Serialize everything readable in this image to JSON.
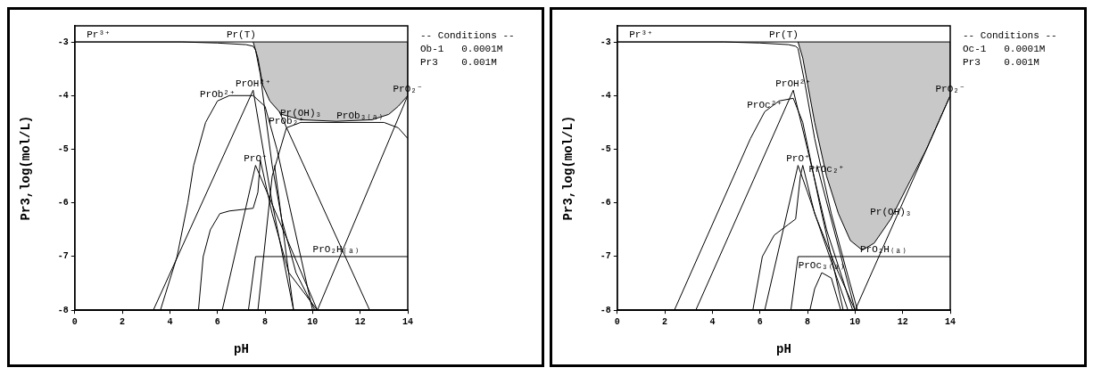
{
  "chart_data": [
    {
      "type": "line",
      "xlabel": "pH",
      "ylabel": "Pr3,log(mol/L)",
      "xlim": [
        0,
        14
      ],
      "ylim": [
        -8,
        -2.7
      ],
      "xticks": [
        0,
        2,
        4,
        6,
        8,
        10,
        12,
        14
      ],
      "yticks": [
        -8,
        -7,
        -6,
        -5,
        -4,
        -3
      ],
      "marker": "none",
      "legend": false,
      "series": [
        {
          "color": "#000000",
          "x": [
            0,
            14
          ],
          "values": [
            -3,
            -3
          ]
        },
        {
          "type": "area",
          "color": "#c8c8c8",
          "x": [
            7.5,
            7.7,
            7.9,
            8.2,
            8.7,
            9.5,
            11,
            12.5,
            13.2,
            13.6,
            14,
            14
          ],
          "values": [
            -3,
            -3.3,
            -3.8,
            -4.1,
            -4.35,
            -4.45,
            -4.48,
            -4.45,
            -4.35,
            -4.2,
            -4,
            -3
          ]
        },
        {
          "color": "#000000",
          "x": [
            0,
            4.5,
            6,
            7.2,
            7.5,
            7.6,
            7.8,
            8,
            8.3,
            8.7,
            9.3,
            10.1
          ],
          "values": [
            -3,
            -3,
            -3.02,
            -3.05,
            -3.08,
            -3.15,
            -3.6,
            -4.3,
            -5.3,
            -6.3,
            -7.3,
            -8
          ]
        },
        {
          "color": "#000000",
          "x": [
            3.6,
            4.3,
            4.75,
            5,
            5.5,
            6,
            6.5,
            7.5,
            8,
            8.5,
            9,
            9.5,
            10
          ],
          "values": [
            -8,
            -7,
            -6,
            -5.3,
            -4.5,
            -4.1,
            -4,
            -4,
            -4.2,
            -5,
            -6,
            -7,
            -8
          ]
        },
        {
          "color": "#000000",
          "x": [
            3.3,
            7.5,
            8.3,
            9.2
          ],
          "values": [
            -8,
            -3.9,
            -6,
            -8
          ]
        },
        {
          "color": "#000000",
          "x": [
            5.2,
            5.4,
            5.7,
            6.1,
            6.5,
            7.5,
            7.7,
            7.8,
            8.3,
            9,
            10.2
          ],
          "values": [
            -8,
            -7,
            -6.5,
            -6.2,
            -6.15,
            -6.1,
            -5.8,
            -5.2,
            -6.2,
            -7.3,
            -8
          ]
        },
        {
          "color": "#000000",
          "x": [
            6.2,
            7.6,
            10.2
          ],
          "values": [
            -8,
            -5.3,
            -8
          ]
        },
        {
          "color": "#000000",
          "x": [
            7.3,
            7.6,
            14
          ],
          "values": [
            -8,
            -7,
            -7
          ]
        },
        {
          "color": "#000000",
          "x": [
            7.7,
            8.3,
            8.9,
            9.5,
            11,
            13,
            13.6,
            14
          ],
          "values": [
            -8,
            -5.5,
            -4.6,
            -4.5,
            -4.5,
            -4.5,
            -4.6,
            -4.8
          ]
        },
        {
          "color": "#000000",
          "x": [
            8.4,
            9.2
          ],
          "values": [
            -5.3,
            -8
          ]
        },
        {
          "color": "#000000",
          "x": [
            10.2,
            14
          ],
          "values": [
            -8,
            -4
          ]
        },
        {
          "color": "#000000",
          "x": [
            8.6,
            12.4
          ],
          "values": [
            -4.3,
            -8
          ]
        }
      ],
      "annotations": [
        {
          "text": "Pr(T)",
          "x": 7,
          "y": -3
        },
        {
          "text": "Pr³⁺",
          "x": 1,
          "y": -3
        },
        {
          "text": "PrOH²⁺",
          "x": 7.5,
          "y": -3.9
        },
        {
          "text": "PrOb²⁺",
          "x": 6,
          "y": -4.1
        },
        {
          "text": "Pr(OH)₃",
          "x": 9.5,
          "y": -4.45
        },
        {
          "text": "PrO₂⁻",
          "x": 14,
          "y": -4
        },
        {
          "text": "PrOb₂⁺",
          "x": 8.9,
          "y": -4.6
        },
        {
          "text": "PrOb₃₍ₐ₎",
          "x": 12,
          "y": -4.5
        },
        {
          "text": "PrO⁺",
          "x": 7.6,
          "y": -5.3
        },
        {
          "text": "PrO₂H₍ₐ₎",
          "x": 11,
          "y": -7
        },
        "-- Conditions --",
        "Ob-1   0.0001M",
        "Pr3    0.001M"
      ]
    },
    {
      "type": "line",
      "xlabel": "pH",
      "ylabel": "Pr3,log(mol/L)",
      "xlim": [
        0,
        14
      ],
      "ylim": [
        -8,
        -2.7
      ],
      "xticks": [
        0,
        2,
        4,
        6,
        8,
        10,
        12,
        14
      ],
      "yticks": [
        -8,
        -7,
        -6,
        -5,
        -4,
        -3
      ],
      "marker": "none",
      "legend": false,
      "series": [
        {
          "color": "#000000",
          "x": [
            0,
            14
          ],
          "values": [
            -3,
            -3
          ]
        },
        {
          "type": "area",
          "color": "#c8c8c8",
          "x": [
            7.6,
            7.8,
            8.3,
            8.8,
            9.3,
            9.8,
            10.3,
            10.8,
            11.5,
            12.3,
            13,
            14,
            14
          ],
          "values": [
            -3,
            -3.3,
            -4.5,
            -5.5,
            -6.2,
            -6.7,
            -6.88,
            -6.75,
            -6.3,
            -5.6,
            -5,
            -4,
            -3
          ]
        },
        {
          "color": "#000000",
          "x": [
            0,
            4.5,
            6,
            7.2,
            7.5,
            7.6,
            7.9,
            8.3,
            9,
            9.6,
            10.1
          ],
          "values": [
            -3,
            -3,
            -3.02,
            -3.05,
            -3.08,
            -3.12,
            -3.8,
            -4.8,
            -6.2,
            -7.2,
            -8
          ]
        },
        {
          "color": "#000000",
          "x": [
            2.4,
            5,
            5.6,
            6.2,
            6.8,
            7.4,
            7.8,
            8.5,
            9.5
          ],
          "values": [
            -8,
            -5.4,
            -4.8,
            -4.3,
            -4.1,
            -4.05,
            -4.5,
            -6,
            -8
          ]
        },
        {
          "color": "#000000",
          "x": [
            3.3,
            7.4,
            8,
            8.8,
            9.9
          ],
          "values": [
            -8,
            -3.9,
            -5,
            -6.5,
            -8
          ]
        },
        {
          "color": "#000000",
          "x": [
            5.7,
            6.1,
            6.6,
            7.2,
            7.5,
            7.7,
            7.8,
            8.3,
            9.2,
            10
          ],
          "values": [
            -8,
            -7,
            -6.6,
            -6.4,
            -6.3,
            -5.5,
            -5.3,
            -6.2,
            -7.2,
            -8
          ]
        },
        {
          "color": "#000000",
          "x": [
            6.2,
            7.6,
            8,
            9.7
          ],
          "values": [
            -8,
            -5.3,
            -5.8,
            -8
          ]
        },
        {
          "color": "#000000",
          "x": [
            7.3,
            7.6,
            14
          ],
          "values": [
            -8,
            -7,
            -7
          ]
        },
        {
          "color": "#000000",
          "x": [
            8.1,
            8.3,
            8.6,
            9,
            9.4
          ],
          "values": [
            -8,
            -7.6,
            -7.3,
            -7.4,
            -8
          ]
        },
        {
          "color": "#000000",
          "x": [
            8.4,
            10
          ],
          "values": [
            -5.3,
            -8
          ]
        },
        {
          "color": "#000000",
          "x": [
            10,
            14
          ],
          "values": [
            -8,
            -4
          ]
        }
      ],
      "annotations": [
        {
          "text": "Pr(T)",
          "x": 7,
          "y": -3
        },
        {
          "text": "Pr³⁺",
          "x": 1,
          "y": -3
        },
        {
          "text": "PrOH²⁺",
          "x": 7.4,
          "y": -3.9
        },
        {
          "text": "PrOc²⁺",
          "x": 6.2,
          "y": -4.3
        },
        {
          "text": "PrO₂⁻",
          "x": 14,
          "y": -4
        },
        {
          "text": "Pr(OH)₃",
          "x": 11.5,
          "y": -6.3
        },
        {
          "text": "PrO⁺",
          "x": 7.6,
          "y": -5.3
        },
        {
          "text": "PrOc₂⁺",
          "x": 8.8,
          "y": -5.5
        },
        {
          "text": "PrO₂H₍ₐ₎",
          "x": 11.2,
          "y": -7
        },
        {
          "text": "PrOc₃₍ₐ₎",
          "x": 8.6,
          "y": -7.3
        },
        "-- Conditions --",
        "Oc-1   0.0001M",
        "Pr3    0.001M"
      ]
    }
  ]
}
